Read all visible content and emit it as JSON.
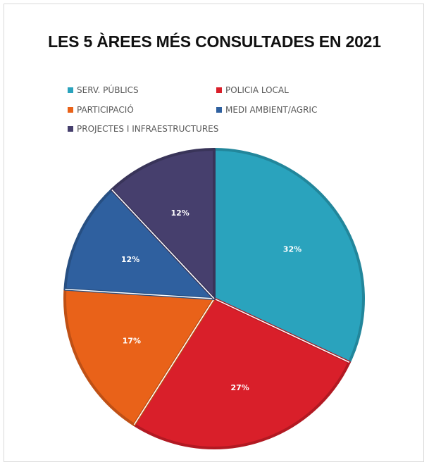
{
  "chart_data": {
    "type": "pie",
    "title": "LES 5 ÀREES MÉS CONSULTADES EN 2021",
    "categories": [
      "SERV. PÚBLICS",
      "POLICIA LOCAL",
      "PARTICIPACIÓ",
      "MEDI AMBIENT/AGRIC",
      "PROJECTES I INFRAESTRUCTURES"
    ],
    "values": [
      32,
      27,
      17,
      12,
      12
    ],
    "labels": [
      "32%",
      "27%",
      "17%",
      "12%",
      "12%"
    ],
    "colors": [
      "#2aa3bd",
      "#d91f2a",
      "#e96219",
      "#2f609f",
      "#463f6d"
    ],
    "legend_position": "top",
    "xlabel": "",
    "ylabel": ""
  }
}
